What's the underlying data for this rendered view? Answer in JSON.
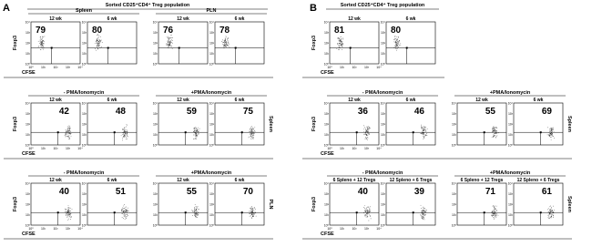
{
  "axis": {
    "y_label": "Foxp3",
    "x_label": "CFSE",
    "ticks": [
      "10⁰",
      "10¹",
      "10²",
      "10³",
      "10⁴"
    ]
  },
  "panels": [
    {
      "label": "A",
      "sections": [
        {
          "title": "Sorted CD25⁺CD4⁺ Treg population",
          "groups": [
            {
              "title": "Spleen",
              "plots": [
                {
                  "label": "12 wk",
                  "value": 79
                },
                {
                  "label": "6 wk",
                  "value": 80
                }
              ]
            },
            {
              "title": "PLN",
              "plots": [
                {
                  "label": "12 wk",
                  "value": 76
                },
                {
                  "label": "6 wk",
                  "value": 78
                }
              ]
            }
          ]
        },
        {
          "side": "Spleen",
          "groups": [
            {
              "title": "- PMA/Ionomycin",
              "plots": [
                {
                  "label": "12 wk",
                  "value": 42
                },
                {
                  "label": "6 wk",
                  "value": 48
                }
              ]
            },
            {
              "title": "+PMA/Ionomycin",
              "plots": [
                {
                  "label": "12 wk",
                  "value": 59
                },
                {
                  "label": "6 wk",
                  "value": 75
                }
              ]
            }
          ]
        },
        {
          "side": "PLN",
          "groups": [
            {
              "title": "- PMA/Ionomycin",
              "plots": [
                {
                  "label": "12 wk",
                  "value": 40
                },
                {
                  "label": "6 wk",
                  "value": 51
                }
              ]
            },
            {
              "title": "+PMA/Ionomycin",
              "plots": [
                {
                  "label": "12 wk",
                  "value": 55
                },
                {
                  "label": "6 wk",
                  "value": 70
                }
              ]
            }
          ]
        }
      ]
    },
    {
      "label": "B",
      "sections": [
        {
          "title": "Sorted CD25⁺CD4⁺ Treg population",
          "groups": [
            {
              "plots": [
                {
                  "label": "12 wk",
                  "value": 81
                },
                {
                  "label": "6 wk",
                  "value": 80
                }
              ]
            }
          ]
        },
        {
          "side": "Spleen",
          "groups": [
            {
              "title": "- PMA/Ionomycin",
              "plots": [
                {
                  "label": "12 wk",
                  "value": 36
                },
                {
                  "label": "6 wk",
                  "value": 46
                }
              ]
            },
            {
              "title": "+PMA/Ionomycin",
              "plots": [
                {
                  "label": "12 wk",
                  "value": 55
                },
                {
                  "label": "6 wk",
                  "value": 69
                }
              ]
            }
          ]
        },
        {
          "side": "Spleen",
          "groups": [
            {
              "title": "- PMA/Ionomycin",
              "plots": [
                {
                  "label": "6 Spleno + 12 Tregs",
                  "value": 40
                },
                {
                  "label": "12 Spleno + 6 Tregs",
                  "value": 39
                }
              ]
            },
            {
              "title": "+PMA/Ionomycin",
              "plots": [
                {
                  "label": "6 Spleno + 12 Tregs",
                  "value": 71
                },
                {
                  "label": "12 Spleno + 6 Tregs",
                  "value": 61
                }
              ]
            }
          ]
        }
      ]
    }
  ]
}
